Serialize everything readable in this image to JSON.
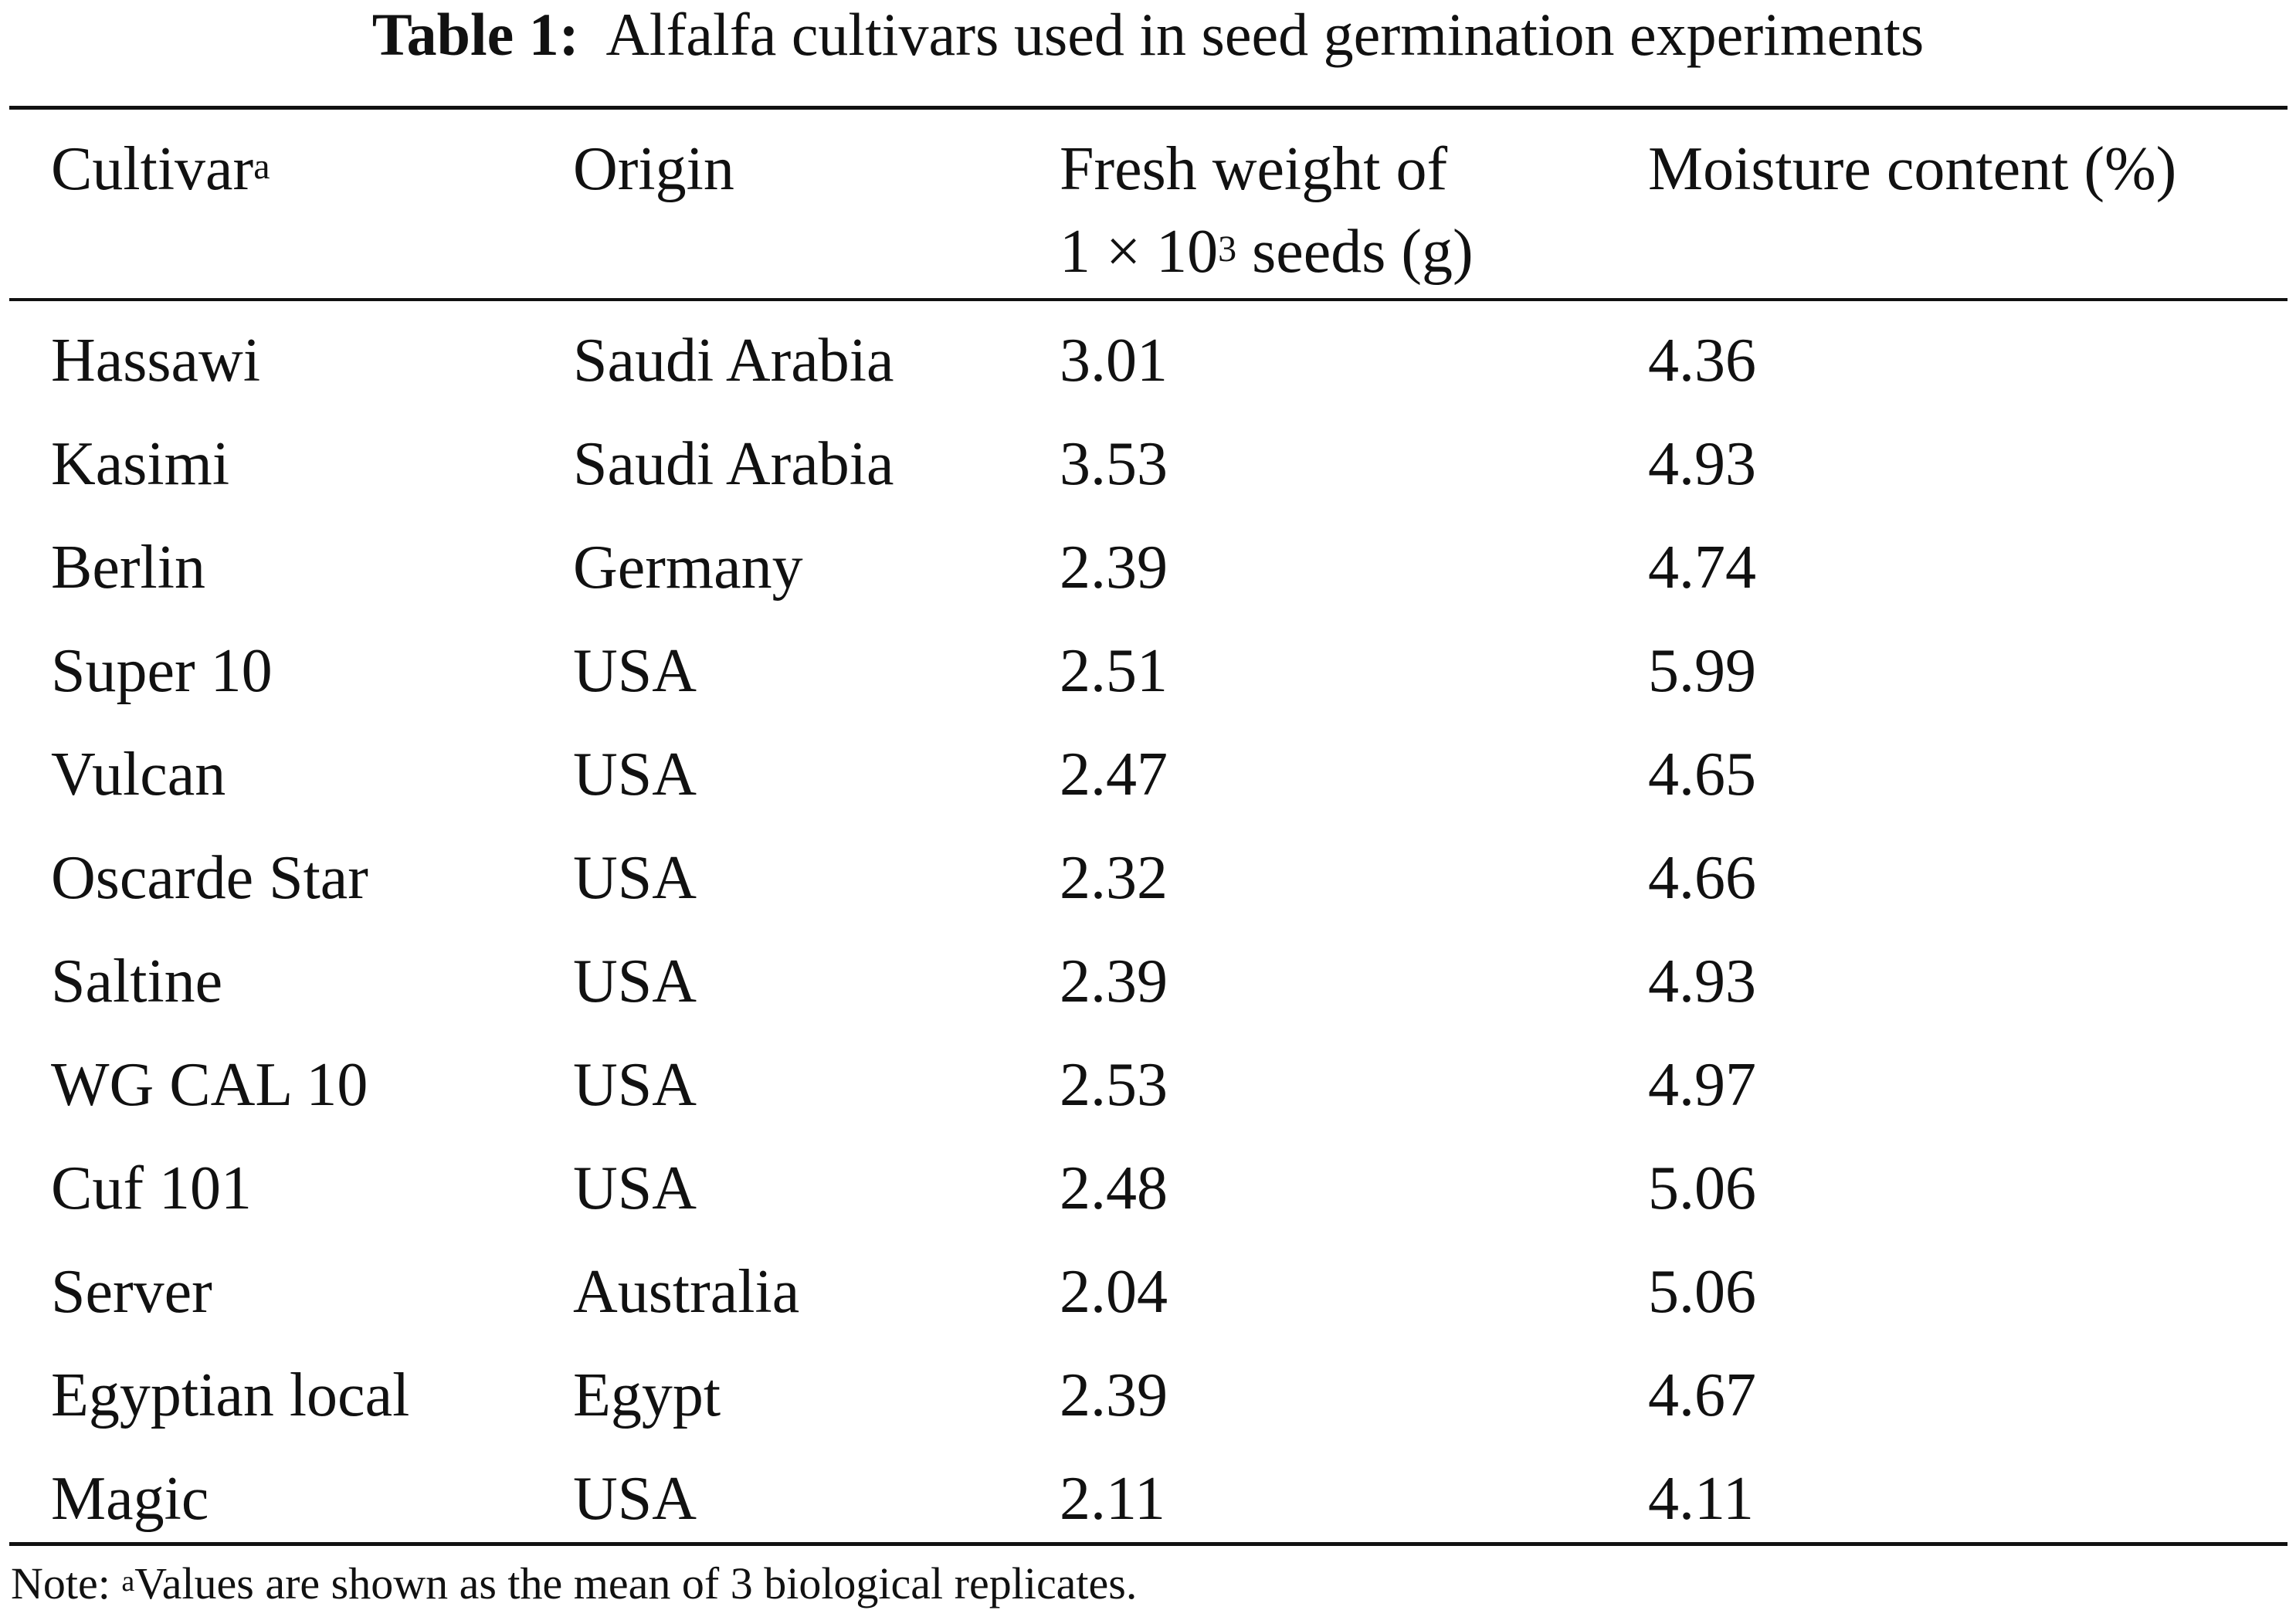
{
  "caption": {
    "label": "Table 1:",
    "title": "Alfalfa cultivars used in seed germination experiments"
  },
  "header": {
    "cultivar": "Cultivar",
    "cultivar_sup": "a",
    "origin": "Origin",
    "fresh_weight_line1": "Fresh weight of",
    "fresh_weight_line2_pre": "1 × 10",
    "fresh_weight_line2_sup": "3",
    "fresh_weight_line2_post": " seeds (g)",
    "moisture": "Moisture content (%)"
  },
  "rows": [
    {
      "cultivar": "Hassawi",
      "origin": "Saudi Arabia",
      "fresh_weight": "3.01",
      "moisture": "4.36"
    },
    {
      "cultivar": "Kasimi",
      "origin": "Saudi Arabia",
      "fresh_weight": "3.53",
      "moisture": "4.93"
    },
    {
      "cultivar": "Berlin",
      "origin": "Germany",
      "fresh_weight": "2.39",
      "moisture": "4.74"
    },
    {
      "cultivar": "Super 10",
      "origin": "USA",
      "fresh_weight": "2.51",
      "moisture": "5.99"
    },
    {
      "cultivar": "Vulcan",
      "origin": "USA",
      "fresh_weight": "2.47",
      "moisture": "4.65"
    },
    {
      "cultivar": "Oscarde Star",
      "origin": "USA",
      "fresh_weight": "2.32",
      "moisture": "4.66"
    },
    {
      "cultivar": "Saltine",
      "origin": "USA",
      "fresh_weight": "2.39",
      "moisture": "4.93"
    },
    {
      "cultivar": "WG CAL 10",
      "origin": "USA",
      "fresh_weight": "2.53",
      "moisture": "4.97"
    },
    {
      "cultivar": "Cuf 101",
      "origin": "USA",
      "fresh_weight": "2.48",
      "moisture": "5.06"
    },
    {
      "cultivar": "Server",
      "origin": "Australia",
      "fresh_weight": "2.04",
      "moisture": "5.06"
    },
    {
      "cultivar": "Egyptian local",
      "origin": "Egypt",
      "fresh_weight": "2.39",
      "moisture": "4.67"
    },
    {
      "cultivar": "Magic",
      "origin": "USA",
      "fresh_weight": "2.11",
      "moisture": "4.11"
    }
  ],
  "note": {
    "prefix": "Note: ",
    "sup": "a",
    "text": "Values are shown as the mean of 3 biological replicates."
  }
}
